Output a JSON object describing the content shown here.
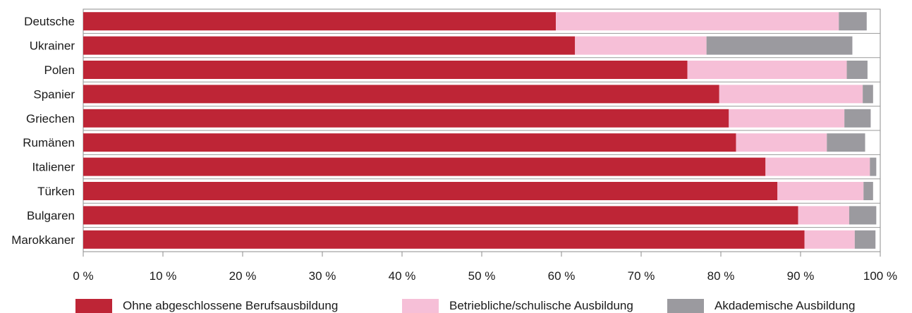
{
  "chart_data": {
    "type": "bar",
    "orientation": "horizontal",
    "stacked": true,
    "categories": [
      "Deutsche",
      "Ukrainer",
      "Polen",
      "Spanier",
      "Griechen",
      "Rumänen",
      "Italiener",
      "Türken",
      "Bulgaren",
      "Marokkaner"
    ],
    "series": [
      {
        "name": "Ohne abgeschlossene Berufsausbildung",
        "color": "#be2536",
        "values": [
          59.3,
          61.7,
          75.8,
          79.8,
          81.0,
          81.9,
          85.6,
          87.1,
          89.7,
          90.5
        ]
      },
      {
        "name": "Betriebliche/schulische Ausbildung",
        "color": "#f6bfd7",
        "values": [
          35.5,
          16.5,
          20.0,
          18.0,
          14.5,
          11.4,
          13.1,
          10.8,
          6.4,
          6.3
        ]
      },
      {
        "name": "Akdademische Ausbildung",
        "color": "#9b9a9f",
        "values": [
          3.5,
          18.3,
          2.6,
          1.3,
          3.3,
          4.8,
          0.8,
          1.2,
          3.4,
          2.6
        ]
      }
    ],
    "xlim": [
      0,
      100
    ],
    "xticks": [
      "0 %",
      "10 %",
      "20 %",
      "30 %",
      "40 %",
      "50 %",
      "60 %",
      "70 %",
      "80 %",
      "90 %",
      "100 %"
    ],
    "grid": true,
    "legend_position": "bottom"
  }
}
